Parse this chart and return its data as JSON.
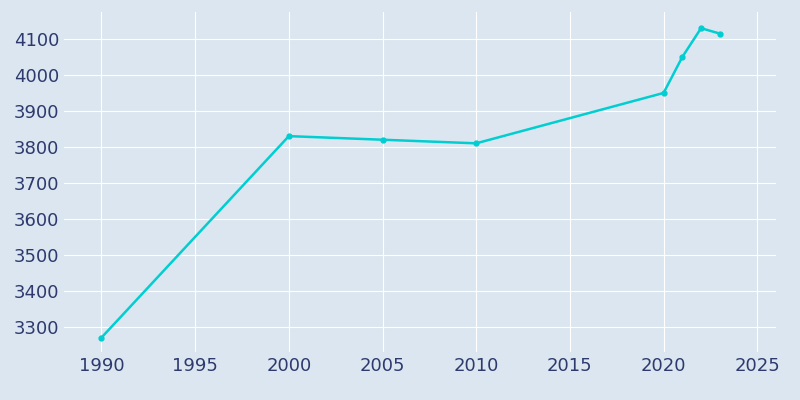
{
  "years": [
    1990,
    2000,
    2005,
    2010,
    2020,
    2021,
    2022,
    2023
  ],
  "population": [
    3270,
    3830,
    3820,
    3810,
    3950,
    4050,
    4130,
    4115
  ],
  "line_color": "#00CED1",
  "background_color": "#dce6f0",
  "grid_color": "#ffffff",
  "tick_color": "#2E3A6E",
  "xlim": [
    1988,
    2026
  ],
  "ylim": [
    3230,
    4175
  ],
  "xticks": [
    1990,
    1995,
    2000,
    2005,
    2010,
    2015,
    2020,
    2025
  ],
  "yticks": [
    3300,
    3400,
    3500,
    3600,
    3700,
    3800,
    3900,
    4000,
    4100
  ],
  "linewidth": 1.8,
  "marker": "o",
  "markersize": 3.5,
  "tick_fontsize": 13
}
